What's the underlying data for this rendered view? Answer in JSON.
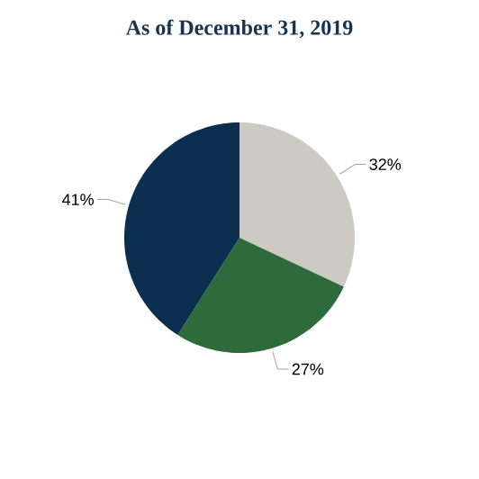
{
  "chart_data": {
    "type": "pie",
    "title": "As of December 31, 2019",
    "categories": [
      null,
      null,
      null
    ],
    "values": [
      32,
      27,
      41
    ],
    "value_labels": [
      "32%",
      "27%",
      "41%"
    ],
    "colors": [
      "#cdcac3",
      "#2e6b3a",
      "#0c2f4f"
    ]
  }
}
